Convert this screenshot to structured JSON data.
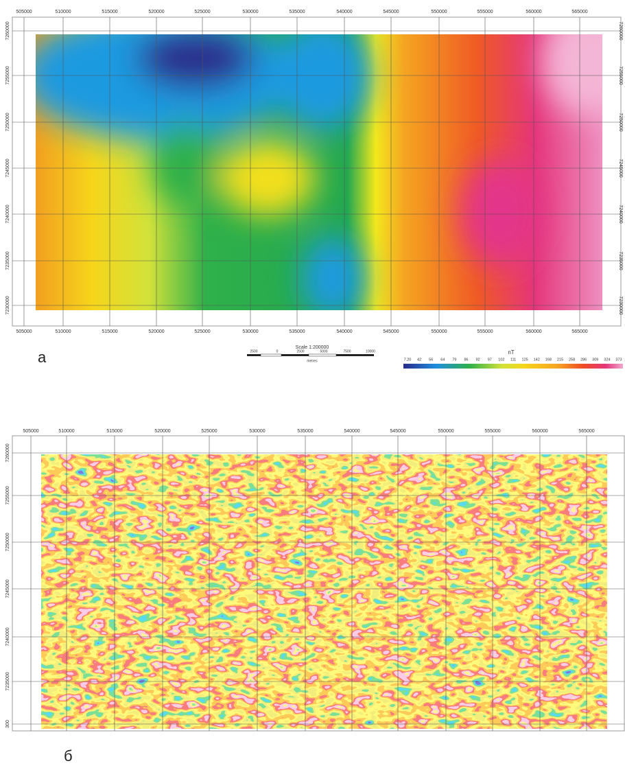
{
  "map_a": {
    "x_labels": [
      "505000",
      "510000",
      "515000",
      "520000",
      "525000",
      "530000",
      "535000",
      "540000",
      "545000",
      "550000",
      "555000",
      "560000",
      "565000"
    ],
    "y_labels": [
      "7260000",
      "7255000",
      "7250000",
      "7245000",
      "7240000",
      "7235000",
      "7230000"
    ],
    "scale": {
      "title": "Scale 1:200000",
      "ticks": [
        "2500",
        "0",
        "2500",
        "5000",
        "7500",
        "10000"
      ],
      "unit": "metres"
    },
    "colorbar": {
      "unit": "nT",
      "labels": [
        "7.20",
        "42",
        "56",
        "64",
        "79",
        "86",
        "92",
        "97",
        "102",
        "111",
        "125",
        "142",
        "168",
        "215",
        "258",
        "286",
        "309",
        "324",
        "373"
      ]
    },
    "panel_label": "а"
  },
  "map_b": {
    "x_labels": [
      "505000",
      "510000",
      "515000",
      "520000",
      "525000",
      "530000",
      "535000",
      "540000",
      "545000",
      "550000",
      "555000",
      "560000",
      "565000"
    ],
    "y_labels": [
      "7260000",
      "7255000",
      "7250000",
      "7245000",
      "7240000",
      "7235000",
      "300"
    ],
    "panel_label": "б"
  }
}
